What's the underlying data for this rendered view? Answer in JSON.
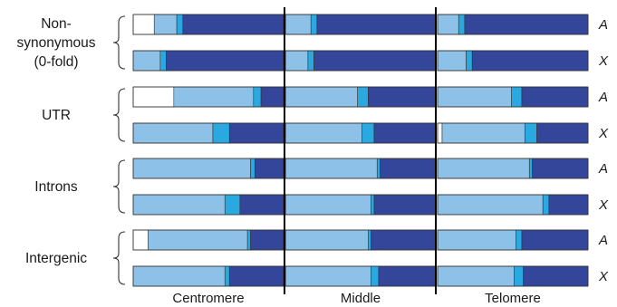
{
  "chart_data": {
    "type": "bar",
    "stacked": true,
    "normalized": true,
    "groups": [
      {
        "label_lines": [
          "Non-",
          "synonymous",
          "(0-fold)"
        ]
      },
      {
        "label_lines": [
          "UTR"
        ]
      },
      {
        "label_lines": [
          "Introns"
        ]
      },
      {
        "label_lines": [
          "Intergenic"
        ]
      }
    ],
    "rows": [
      "A",
      "X",
      "A",
      "X",
      "A",
      "X",
      "A",
      "X"
    ],
    "columns": [
      "Centromere",
      "Middle",
      "Telomere"
    ],
    "segment_colors": [
      "#ffffff",
      "#8ec1e8",
      "#2aa9e0",
      "#34469a"
    ],
    "values": [
      [
        [
          0.14,
          0.15,
          0.04,
          0.67
        ],
        [
          0.0,
          0.17,
          0.04,
          0.79
        ],
        [
          0.0,
          0.14,
          0.04,
          0.82
        ]
      ],
      [
        [
          0.0,
          0.18,
          0.04,
          0.78
        ],
        [
          0.0,
          0.15,
          0.04,
          0.81
        ],
        [
          0.0,
          0.19,
          0.04,
          0.77
        ]
      ],
      [
        [
          0.27,
          0.53,
          0.05,
          0.15
        ],
        [
          0.0,
          0.48,
          0.07,
          0.45
        ],
        [
          0.0,
          0.49,
          0.07,
          0.44
        ]
      ],
      [
        [
          0.0,
          0.53,
          0.11,
          0.36
        ],
        [
          0.0,
          0.51,
          0.08,
          0.41
        ],
        [
          0.03,
          0.55,
          0.08,
          0.34
        ]
      ],
      [
        [
          0.0,
          0.78,
          0.03,
          0.19
        ],
        [
          0.0,
          0.61,
          0.02,
          0.37
        ],
        [
          0.0,
          0.61,
          0.02,
          0.37
        ]
      ],
      [
        [
          0.0,
          0.61,
          0.1,
          0.29
        ],
        [
          0.0,
          0.57,
          0.02,
          0.41
        ],
        [
          0.0,
          0.7,
          0.04,
          0.26
        ]
      ],
      [
        [
          0.1,
          0.66,
          0.02,
          0.22
        ],
        [
          0.0,
          0.55,
          0.02,
          0.43
        ],
        [
          0.0,
          0.52,
          0.04,
          0.44
        ]
      ],
      [
        [
          0.0,
          0.61,
          0.03,
          0.36
        ],
        [
          0.0,
          0.57,
          0.05,
          0.38
        ],
        [
          0.0,
          0.51,
          0.06,
          0.43
        ]
      ]
    ]
  }
}
